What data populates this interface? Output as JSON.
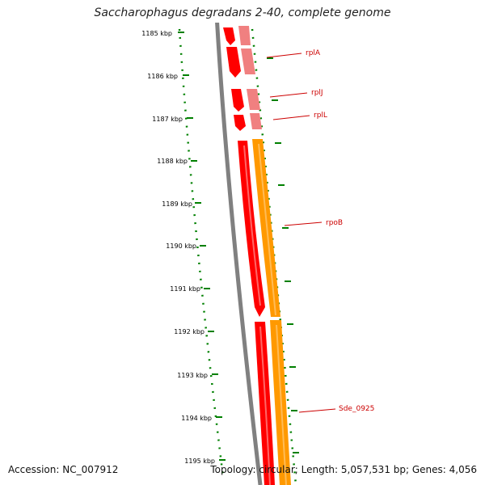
{
  "title": "Saccharophagus degradans 2-40, complete genome",
  "footer": {
    "accession": "Accession: NC_007912",
    "summary": "Topology: circular; Length: 5,057,531 bp; Genes: 4,056"
  },
  "ticks": [
    "1185 kbp",
    "1186 kbp",
    "1187 kbp",
    "1188 kbp",
    "1189 kbp",
    "1190 kbp",
    "1191 kbp",
    "1192 kbp",
    "1193 kbp",
    "1194 kbp",
    "1195 kbp"
  ],
  "gene_labels": [
    "rplA",
    "rplJ",
    "rplL",
    "rpoB",
    "Sde_0925"
  ],
  "colors": {
    "cds": "#ff0000",
    "cds_light": "#f08080",
    "rna": "#ff9900",
    "backbone": "#808080",
    "ticks": "#008000",
    "label": "#cc0000"
  }
}
